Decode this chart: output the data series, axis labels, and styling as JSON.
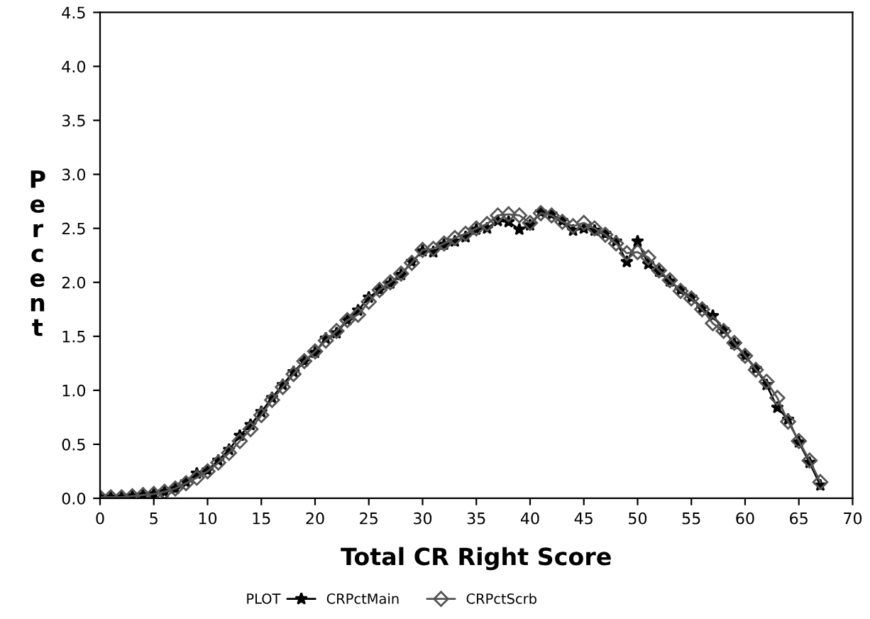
{
  "chart_data": {
    "type": "line",
    "xlabel": "Total CR Right Score",
    "ylabel": "Percent",
    "legend_title": "PLOT",
    "legend": "bottom",
    "grid": false,
    "x": [
      0,
      1,
      2,
      3,
      4,
      5,
      6,
      7,
      8,
      9,
      10,
      11,
      12,
      13,
      14,
      15,
      16,
      17,
      18,
      19,
      20,
      21,
      22,
      23,
      24,
      25,
      26,
      27,
      28,
      29,
      30,
      31,
      32,
      33,
      34,
      35,
      36,
      37,
      38,
      39,
      40,
      41,
      42,
      43,
      44,
      45,
      46,
      47,
      48,
      49,
      50,
      51,
      52,
      53,
      54,
      55,
      56,
      57,
      58,
      59,
      60,
      61,
      62,
      63,
      64,
      65,
      66,
      67
    ],
    "xlim": [
      0,
      70
    ],
    "xticks": [
      0,
      5,
      10,
      15,
      20,
      25,
      30,
      35,
      40,
      45,
      50,
      55,
      60,
      65,
      70
    ],
    "ylim": [
      0,
      4.5
    ],
    "yticks": [
      {
        "value": 0,
        "label": "0.0"
      },
      0.5,
      {
        "value": 1,
        "label": "1.0"
      },
      1.5,
      {
        "value": 2,
        "label": "2.0"
      },
      2.5,
      {
        "value": 3,
        "label": "3.0"
      },
      3.5,
      {
        "value": 4,
        "label": "4.0"
      },
      4.5
    ],
    "series": [
      {
        "name": "CRPctMain",
        "color": "#000000",
        "marker": "star",
        "values": [
          0.01,
          0.01,
          0.01,
          0.02,
          0.03,
          0.04,
          0.06,
          0.09,
          0.15,
          0.23,
          0.26,
          0.35,
          0.45,
          0.58,
          0.68,
          0.8,
          0.93,
          1.05,
          1.17,
          1.27,
          1.35,
          1.48,
          1.53,
          1.65,
          1.74,
          1.86,
          1.93,
          1.99,
          2.07,
          2.19,
          2.29,
          2.28,
          2.35,
          2.38,
          2.42,
          2.49,
          2.5,
          2.57,
          2.56,
          2.49,
          2.53,
          2.65,
          2.63,
          2.57,
          2.48,
          2.5,
          2.48,
          2.45,
          2.38,
          2.19,
          2.38,
          2.17,
          2.1,
          2.01,
          1.93,
          1.86,
          1.76,
          1.69,
          1.56,
          1.43,
          1.32,
          1.2,
          1.05,
          0.84,
          0.73,
          0.52,
          0.33,
          0.12
        ]
      },
      {
        "name": "CRPctScrb",
        "color": "#555555",
        "marker": "diamond",
        "values": [
          0.01,
          0.01,
          0.01,
          0.02,
          0.03,
          0.04,
          0.06,
          0.09,
          0.14,
          0.19,
          0.25,
          0.33,
          0.42,
          0.53,
          0.64,
          0.77,
          0.91,
          1.03,
          1.15,
          1.27,
          1.36,
          1.46,
          1.55,
          1.65,
          1.7,
          1.82,
          1.93,
          2.0,
          2.08,
          2.18,
          2.3,
          2.31,
          2.36,
          2.41,
          2.45,
          2.5,
          2.54,
          2.62,
          2.63,
          2.62,
          2.55,
          2.64,
          2.62,
          2.56,
          2.52,
          2.55,
          2.5,
          2.44,
          2.36,
          2.27,
          2.28,
          2.23,
          2.11,
          2.02,
          1.92,
          1.85,
          1.75,
          1.62,
          1.55,
          1.44,
          1.32,
          1.19,
          1.08,
          0.93,
          0.71,
          0.53,
          0.35,
          0.15
        ]
      }
    ]
  }
}
